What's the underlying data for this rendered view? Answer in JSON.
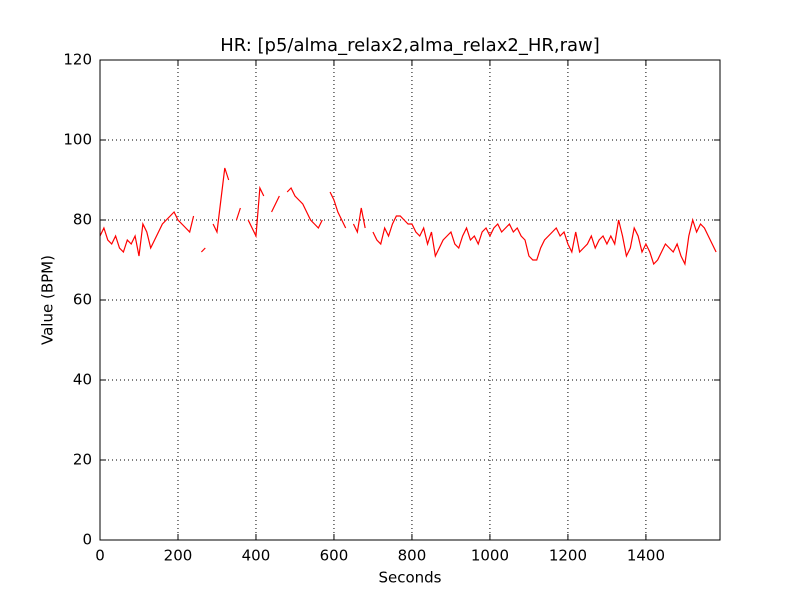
{
  "chart_data": {
    "type": "line",
    "title": "HR: [p5/alma_relax2,alma_relax2_HR,raw]",
    "x_label": "Seconds",
    "y_label": "Value (BPM)",
    "x": [
      0,
      10,
      20,
      30,
      40,
      50,
      60,
      70,
      80,
      90,
      100,
      110,
      120,
      130,
      140,
      150,
      160,
      170,
      180,
      190,
      200,
      210,
      220,
      230,
      240,
      250,
      260,
      270,
      280,
      290,
      300,
      310,
      320,
      330,
      340,
      350,
      360,
      370,
      380,
      390,
      400,
      410,
      420,
      430,
      440,
      450,
      460,
      470,
      480,
      490,
      500,
      510,
      520,
      530,
      540,
      550,
      560,
      570,
      580,
      590,
      600,
      610,
      620,
      630,
      640,
      650,
      660,
      670,
      680,
      690,
      700,
      710,
      720,
      730,
      740,
      750,
      760,
      770,
      780,
      790,
      800,
      810,
      820,
      830,
      840,
      850,
      860,
      870,
      880,
      890,
      900,
      910,
      920,
      930,
      940,
      950,
      960,
      970,
      980,
      990,
      1000,
      1010,
      1020,
      1030,
      1040,
      1050,
      1060,
      1070,
      1080,
      1090,
      1100,
      1110,
      1120,
      1130,
      1140,
      1150,
      1160,
      1170,
      1180,
      1190,
      1200,
      1210,
      1220,
      1230,
      1240,
      1250,
      1260,
      1270,
      1280,
      1290,
      1300,
      1310,
      1320,
      1330,
      1340,
      1350,
      1360,
      1370,
      1380,
      1390,
      1400,
      1410,
      1420,
      1430,
      1440,
      1450,
      1460,
      1470,
      1480,
      1490,
      1500,
      1510,
      1520,
      1530,
      1540,
      1550,
      1560,
      1570,
      1580
    ],
    "series": [
      {
        "name": "HR",
        "color": "#ff0000",
        "values": [
          76,
          78,
          75,
          74,
          76,
          73,
          72,
          75,
          74,
          76,
          71,
          79,
          77,
          73,
          75,
          77,
          79,
          80,
          81,
          82,
          80,
          79,
          78,
          77,
          81,
          null,
          72,
          73,
          null,
          79,
          77,
          85,
          93,
          90,
          null,
          80,
          83,
          null,
          80,
          78,
          76,
          88,
          86,
          null,
          82,
          84,
          86,
          null,
          87,
          88,
          86,
          85,
          84,
          82,
          80,
          79,
          78,
          80,
          null,
          87,
          85,
          82,
          80,
          78,
          null,
          79,
          77,
          83,
          78,
          null,
          77,
          75,
          74,
          78,
          76,
          79,
          81,
          81,
          80,
          79,
          79,
          77,
          76,
          78,
          74,
          77,
          71,
          73,
          75,
          76,
          77,
          74,
          73,
          76,
          78,
          75,
          76,
          74,
          77,
          78,
          76,
          78,
          79,
          77,
          78,
          79,
          77,
          78,
          76,
          75,
          71,
          70,
          70,
          73,
          75,
          76,
          77,
          78,
          76,
          77,
          74,
          72,
          77,
          72,
          73,
          74,
          76,
          73,
          75,
          76,
          74,
          76,
          74,
          80,
          76,
          71,
          73,
          78,
          76,
          72,
          74,
          72,
          69,
          70,
          72,
          74,
          73,
          72,
          74,
          71,
          69,
          76,
          80,
          77,
          79,
          78,
          76,
          74,
          72
        ]
      }
    ],
    "xlim": [
      0,
      1590
    ],
    "ylim": [
      0,
      120
    ],
    "xticks": [
      0,
      200,
      400,
      600,
      800,
      1000,
      1200,
      1400
    ],
    "yticks": [
      0,
      20,
      40,
      60,
      80,
      100,
      120
    ],
    "grid": true
  }
}
